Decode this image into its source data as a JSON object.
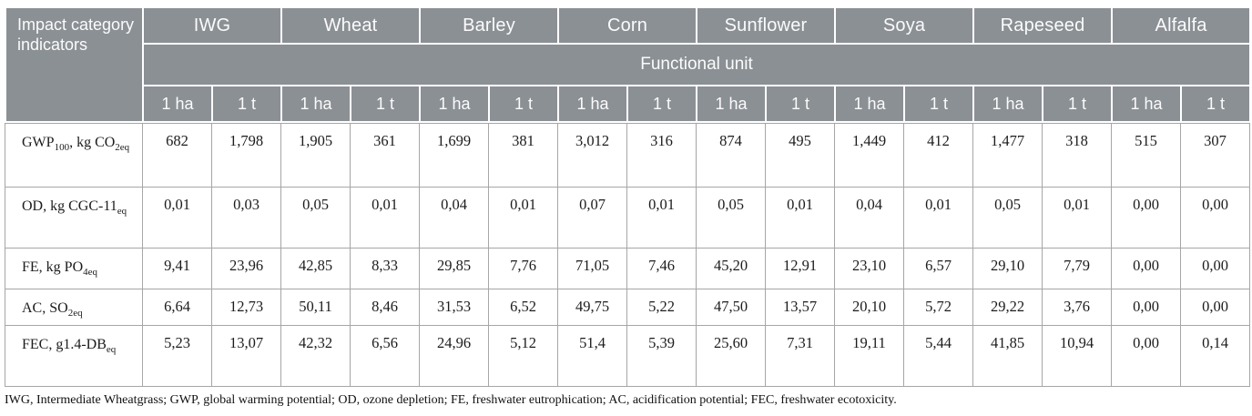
{
  "header": {
    "corner_label": "Impact category indicators",
    "functional_unit_label": "Functional unit",
    "crops": [
      "IWG",
      "Wheat",
      "Barley",
      "Corn",
      "Sunflower",
      "Soya",
      "Rapeseed",
      "Alfalfa"
    ],
    "unit_labels": [
      "1 ha",
      "1 t"
    ]
  },
  "chart_data": {
    "type": "table",
    "columns": [
      "Impact category indicators",
      "IWG 1 ha",
      "IWG 1 t",
      "Wheat 1 ha",
      "Wheat 1 t",
      "Barley 1 ha",
      "Barley 1 t",
      "Corn 1 ha",
      "Corn 1 t",
      "Sunflower 1 ha",
      "Sunflower 1 t",
      "Soya 1 ha",
      "Soya 1 t",
      "Rapeseed 1 ha",
      "Rapeseed 1 t",
      "Alfalfa 1 ha",
      "Alfalfa 1 t"
    ],
    "rows": [
      {
        "label_text": "GWP100, kg CO2eq",
        "label_html": "GWP<sub>100</sub>, kg CO<sub>2eq</sub>",
        "values": [
          "682",
          "1,798",
          "1,905",
          "361",
          "1,699",
          "381",
          "3,012",
          "316",
          "874",
          "495",
          "1,449",
          "412",
          "1,477",
          "318",
          "515",
          "307"
        ]
      },
      {
        "label_text": "OD, kg CGC-11eq",
        "label_html": "OD, kg CGC-11<sub>eq</sub>",
        "values": [
          "0,01",
          "0,03",
          "0,05",
          "0,01",
          "0,04",
          "0,01",
          "0,07",
          "0,01",
          "0,05",
          "0,01",
          "0,04",
          "0,01",
          "0,05",
          "0,01",
          "0,00",
          "0,00"
        ]
      },
      {
        "label_text": "FE, kg PO4eq",
        "label_html": "FE, kg PO<sub>4eq</sub>",
        "values": [
          "9,41",
          "23,96",
          "42,85",
          "8,33",
          "29,85",
          "7,76",
          "71,05",
          "7,46",
          "45,20",
          "12,91",
          "23,10",
          "6,57",
          "29,10",
          "7,79",
          "0,00",
          "0,00"
        ]
      },
      {
        "label_text": "AC, SO2eq",
        "label_html": "AC, SO<sub>2eq</sub>",
        "values": [
          "6,64",
          "12,73",
          "50,11",
          "8,46",
          "31,53",
          "6,52",
          "49,75",
          "5,22",
          "47,50",
          "13,57",
          "20,10",
          "5,72",
          "29,22",
          "3,76",
          "0,00",
          "0,00"
        ]
      },
      {
        "label_text": "FEC, g1.4-DBeq",
        "label_html": "FEC, g1.4-DB<sub>eq</sub>",
        "values": [
          "5,23",
          "13,07",
          "42,32",
          "6,56",
          "24,96",
          "5,12",
          "51,4",
          "5,39",
          "25,60",
          "7,31",
          "19,11",
          "5,44",
          "41,85",
          "10,94",
          "0,00",
          "0,14"
        ]
      }
    ]
  },
  "footnote": "IWG, Intermediate Wheatgrass; GWP, global warming potential; OD, ozone depletion; FE, freshwater eutrophication; AC, acidification potential; FEC, freshwater ecotoxicity.",
  "colors": {
    "header_bg": "#8b9095",
    "header_text": "#fbfbfb",
    "body_border": "#a6a6a6",
    "body_text": "#1c1c1c"
  }
}
